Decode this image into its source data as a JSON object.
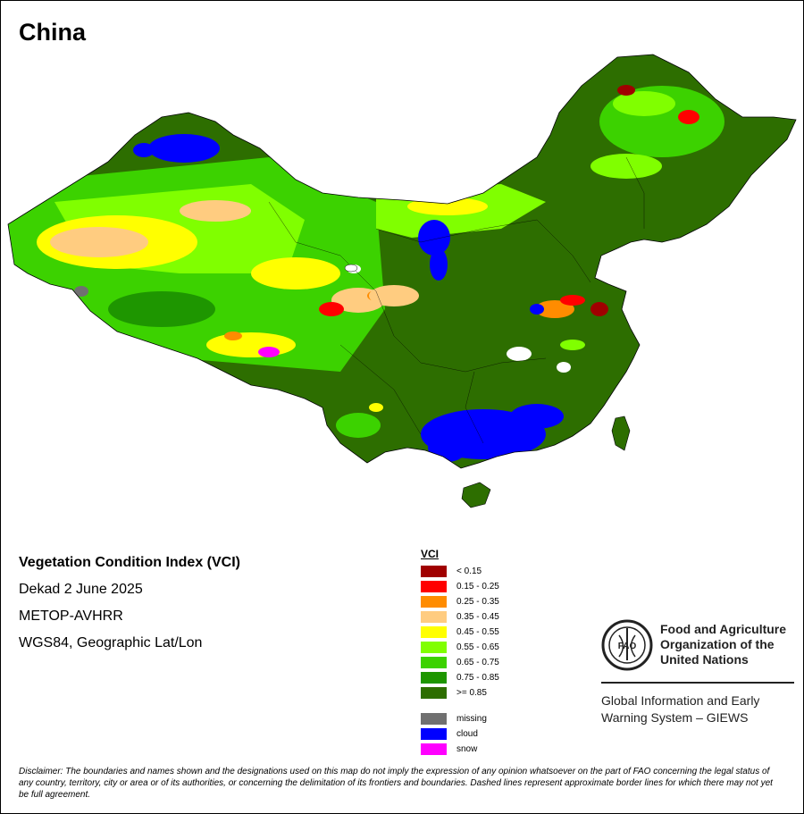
{
  "map": {
    "title": "China",
    "product_title": "Vegetation Condition Index (VCI)",
    "period": "Dekad 2 June 2025",
    "sensor": "METOP-AVHRR",
    "projection": "WGS84, Geographic Lat/Lon"
  },
  "legend": {
    "title": "VCI",
    "classes": [
      {
        "label": "< 0.15",
        "color": "#a00000"
      },
      {
        "label": "0.15 - 0.25",
        "color": "#ff0000"
      },
      {
        "label": "0.25 - 0.35",
        "color": "#ff8c00"
      },
      {
        "label": "0.35 - 0.45",
        "color": "#ffcc80"
      },
      {
        "label": "0.45 - 0.55",
        "color": "#ffff00"
      },
      {
        "label": "0.55 - 0.65",
        "color": "#80ff00"
      },
      {
        "label": "0.65 - 0.75",
        "color": "#3cd200"
      },
      {
        "label": "0.75 - 0.85",
        "color": "#1e9600"
      },
      {
        "label": ">= 0.85",
        "color": "#2d6e00"
      }
    ],
    "extra": [
      {
        "label": "missing",
        "color": "#707070"
      },
      {
        "label": "cloud",
        "color": "#0000ff"
      },
      {
        "label": "snow",
        "color": "#ff00ff"
      }
    ]
  },
  "fao": {
    "org_line1": "Food and Agriculture",
    "org_line2": "Organization of the",
    "org_line3": "United Nations",
    "logo_text": "FAO",
    "giews_line1": "Global Information and Early",
    "giews_line2": "Warning System – GIEWS"
  },
  "disclaimer": "Disclaimer: The boundaries and names shown and the designations used on this map do not imply the expression of any opinion whatsoever on the part of FAO concerning the legal status of any country, territory, city or area or of its authorities, or concerning the delimitation of its frontiers and boundaries. Dashed lines represent approximate border lines for which there may not yet be full agreement."
}
